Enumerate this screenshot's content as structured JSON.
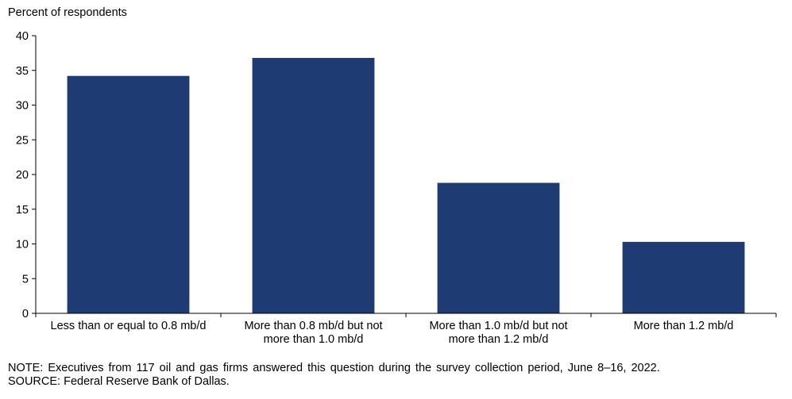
{
  "chart_data": {
    "type": "bar",
    "ylabel": "Percent of respondents",
    "xlabel": "",
    "ylim": [
      0,
      40
    ],
    "yticks": [
      0,
      5,
      10,
      15,
      20,
      25,
      30,
      35,
      40
    ],
    "categories": [
      [
        "Less than or equal to 0.8 mb/d"
      ],
      [
        "More than 0.8 mb/d but not",
        "more than 1.0 mb/d"
      ],
      [
        "More than 1.0 mb/d but not",
        "more than 1.2 mb/d"
      ],
      [
        "More than 1.2 mb/d"
      ]
    ],
    "values": [
      34.2,
      36.8,
      18.8,
      10.3
    ],
    "bar_color": "#1f3b73",
    "grid": false,
    "legend": false
  },
  "footer": {
    "note": "NOTE:  Executives  from  117  oil  and  gas  firms  answered  this  question  during  the  survey  collection  period,  June  8–16,  2022.",
    "source": "SOURCE:  Federal Reserve Bank of Dallas."
  }
}
